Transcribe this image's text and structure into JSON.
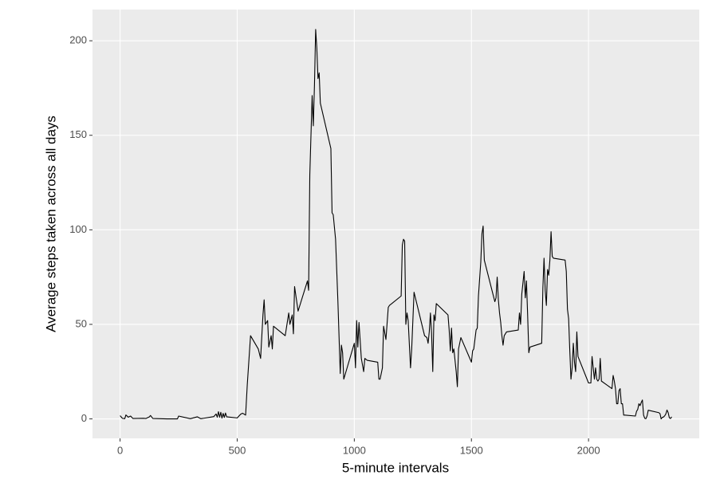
{
  "chart_data": {
    "type": "line",
    "xlabel": "5-minute intervals",
    "ylabel": "Average steps taken across all days",
    "color": "#000000",
    "grid": true,
    "xlim": [
      -117.75,
      2472.75
    ],
    "ylim": [
      -10.3,
      216.5
    ],
    "xticks": [
      0,
      500,
      1000,
      1500,
      2000
    ],
    "yticks": [
      0,
      50,
      100,
      150,
      200
    ],
    "x": [
      0,
      10,
      20,
      25,
      35,
      45,
      55,
      100,
      110,
      125,
      130,
      140,
      200,
      245,
      250,
      300,
      330,
      345,
      400,
      410,
      415,
      420,
      425,
      430,
      435,
      440,
      445,
      450,
      455,
      500,
      515,
      523,
      536,
      543,
      557,
      590,
      600,
      610,
      615,
      620,
      630,
      635,
      645,
      650,
      655,
      705,
      720,
      725,
      735,
      740,
      745,
      760,
      800,
      805,
      810,
      820,
      825,
      830,
      835,
      840,
      845,
      850,
      855,
      900,
      905,
      910,
      920,
      930,
      940,
      945,
      950,
      955,
      1000,
      1005,
      1010,
      1015,
      1020,
      1030,
      1040,
      1045,
      1055,
      1100,
      1105,
      1110,
      1120,
      1125,
      1135,
      1145,
      1150,
      1200,
      1205,
      1210,
      1215,
      1220,
      1225,
      1230,
      1240,
      1245,
      1255,
      1300,
      1310,
      1315,
      1320,
      1325,
      1330,
      1335,
      1340,
      1345,
      1350,
      1400,
      1405,
      1410,
      1415,
      1420,
      1425,
      1435,
      1440,
      1445,
      1455,
      1500,
      1505,
      1510,
      1520,
      1525,
      1530,
      1540,
      1545,
      1550,
      1555,
      1600,
      1605,
      1610,
      1615,
      1620,
      1625,
      1630,
      1635,
      1640,
      1645,
      1650,
      1700,
      1705,
      1710,
      1715,
      1720,
      1725,
      1730,
      1735,
      1740,
      1745,
      1750,
      1800,
      1805,
      1810,
      1815,
      1820,
      1825,
      1830,
      1835,
      1840,
      1845,
      1850,
      1900,
      1905,
      1910,
      1915,
      1920,
      1925,
      1930,
      1935,
      1940,
      1945,
      1950,
      1955,
      2000,
      2005,
      2010,
      2015,
      2020,
      2025,
      2030,
      2035,
      2040,
      2045,
      2050,
      2055,
      2100,
      2105,
      2110,
      2115,
      2120,
      2125,
      2130,
      2135,
      2140,
      2145,
      2150,
      2155,
      2200,
      2205,
      2210,
      2215,
      2220,
      2225,
      2230,
      2235,
      2240,
      2245,
      2250,
      2255,
      2300,
      2305,
      2310,
      2315,
      2320,
      2325,
      2330,
      2335,
      2340,
      2345,
      2350,
      2355
    ],
    "values": [
      1.7,
      0.3,
      0.1,
      2.1,
      0.9,
      1.5,
      0.2,
      0.3,
      0.2,
      1.1,
      1.8,
      0.2,
      0,
      0,
      1.5,
      0.1,
      1.1,
      0.1,
      1.2,
      2.6,
      0.9,
      3.8,
      0.9,
      3.5,
      0.4,
      2.9,
      0.8,
      3.1,
      1.1,
      0.5,
      2.5,
      3,
      2,
      18,
      44,
      37,
      32,
      55,
      63,
      50,
      52,
      38,
      44,
      37,
      49,
      44,
      56,
      50,
      55,
      45,
      70,
      57,
      73,
      68,
      129,
      171,
      155,
      177,
      206,
      196,
      180,
      183,
      167,
      143,
      109,
      108,
      95,
      62,
      24,
      39,
      35,
      21,
      40,
      27,
      52,
      38,
      51,
      32,
      25,
      32,
      31,
      30,
      21,
      21,
      27,
      49,
      42,
      59,
      60,
      65,
      92,
      95,
      94,
      50,
      56,
      52,
      27,
      37,
      67,
      44,
      43,
      40,
      46,
      56,
      45,
      25,
      55,
      52,
      61,
      55,
      47,
      36,
      48,
      35,
      37,
      25,
      17,
      37,
      43,
      30,
      36,
      37,
      47,
      48,
      65,
      83,
      98,
      102,
      84,
      62,
      64,
      75,
      63,
      56,
      51,
      44,
      39,
      44,
      45,
      46,
      47,
      56,
      50,
      66,
      72,
      78,
      64,
      73,
      55,
      35,
      38,
      40,
      69,
      85,
      68,
      60,
      79,
      76,
      84,
      99,
      86,
      85,
      84,
      78,
      58,
      53,
      36,
      21,
      27,
      40,
      30,
      25,
      46,
      33,
      19,
      19,
      19,
      33,
      27,
      21,
      27,
      21,
      20,
      21,
      32,
      20,
      16,
      23,
      20,
      16,
      8,
      8,
      15,
      16,
      8,
      8,
      2,
      2,
      1.5,
      4,
      5,
      8,
      7,
      8.7,
      10,
      2,
      0.3,
      0.1,
      1.6,
      4.6,
      3.3,
      2.8,
      0,
      0.8,
      1,
      1.6,
      2.6,
      4.7,
      3.3,
      0.6,
      0.2,
      1.1
    ]
  }
}
